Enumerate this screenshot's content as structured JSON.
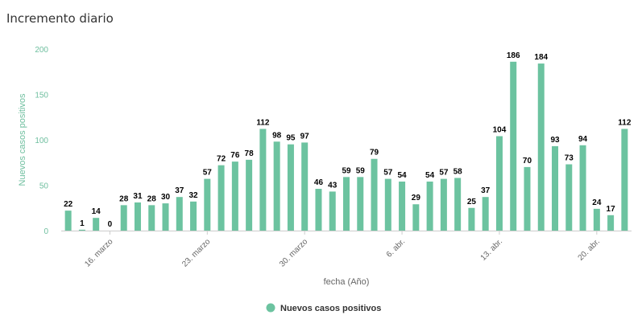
{
  "title": "Incremento diario",
  "chart_data": {
    "type": "bar",
    "title": "Incremento diario",
    "xlabel": "fecha (Año)",
    "ylabel": "Nuevos casos positivos",
    "ylim": [
      0,
      200
    ],
    "yticks": [
      0,
      50,
      100,
      150,
      200
    ],
    "grid": false,
    "legend_position": "bottom-center",
    "color": "#6cc3a0",
    "x_ticks": [
      {
        "index": 3,
        "label": "16. marzo"
      },
      {
        "index": 10,
        "label": "23. marzo"
      },
      {
        "index": 17,
        "label": "30. marzo"
      },
      {
        "index": 24,
        "label": "6. abr."
      },
      {
        "index": 31,
        "label": "13. abr."
      },
      {
        "index": 38,
        "label": "20. abr."
      }
    ],
    "series": [
      {
        "name": "Nuevos casos positivos",
        "values": [
          22,
          1,
          14,
          0,
          28,
          31,
          28,
          30,
          37,
          32,
          57,
          72,
          76,
          78,
          112,
          98,
          95,
          97,
          46,
          43,
          59,
          59,
          79,
          57,
          54,
          29,
          54,
          57,
          58,
          25,
          37,
          104,
          186,
          70,
          184,
          93,
          73,
          94,
          24,
          17,
          112
        ]
      }
    ]
  }
}
